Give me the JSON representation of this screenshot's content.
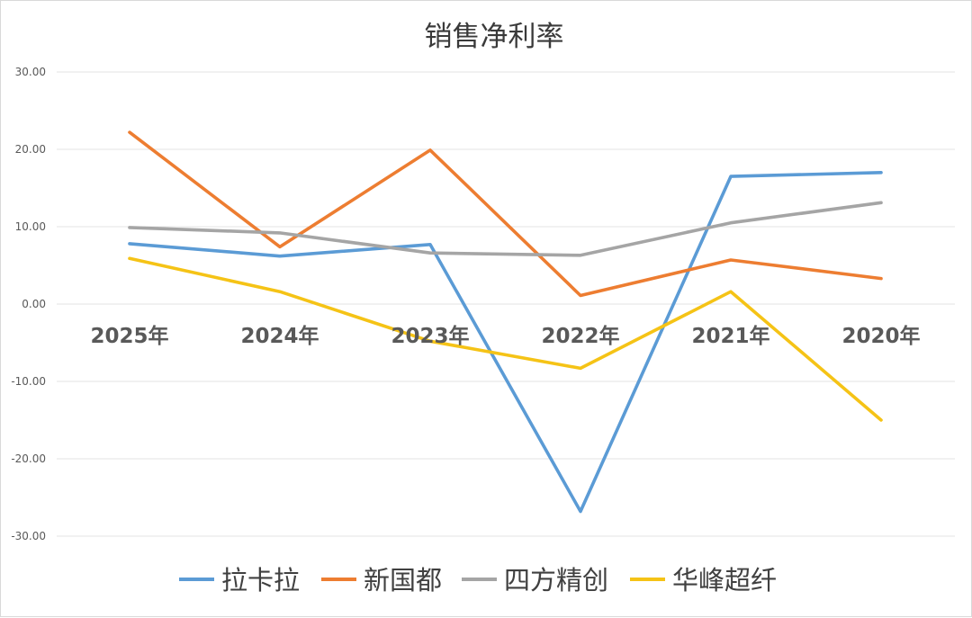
{
  "chart_data": {
    "type": "line",
    "title": "销售净利率",
    "categories": [
      "2025年",
      "2024年",
      "2023年",
      "2022年",
      "2021年",
      "2020年"
    ],
    "ylim": [
      -30,
      30
    ],
    "yticks": [
      "30.00",
      "20.00",
      "10.00",
      "0.00",
      "-10.00",
      "-20.00",
      "-30.00"
    ],
    "grid": true,
    "legend_position": "bottom",
    "series": [
      {
        "name": "拉卡拉",
        "color": "#5b9bd5",
        "values": [
          7.8,
          6.2,
          7.7,
          -26.8,
          16.5,
          17.0
        ]
      },
      {
        "name": "新国都",
        "color": "#ed7d31",
        "values": [
          22.2,
          7.4,
          19.9,
          1.1,
          5.7,
          3.3
        ]
      },
      {
        "name": "四方精创",
        "color": "#a5a5a5",
        "values": [
          9.9,
          9.2,
          6.6,
          6.3,
          10.5,
          13.1
        ]
      },
      {
        "name": "华峰超纤",
        "color": "#f5c316",
        "values": [
          5.9,
          1.6,
          -4.8,
          -8.3,
          1.6,
          -15.0
        ]
      }
    ]
  }
}
